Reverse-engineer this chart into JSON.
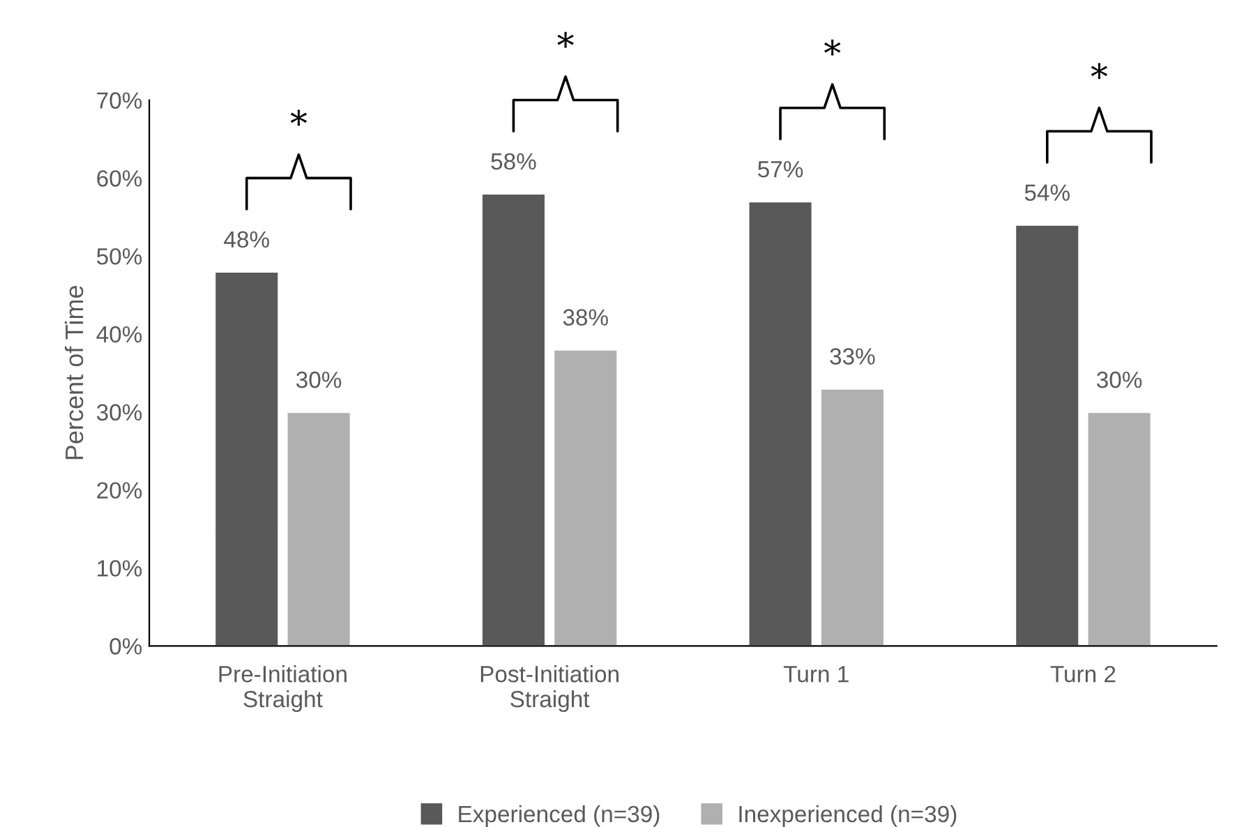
{
  "chart_data": {
    "type": "bar",
    "categories": [
      "Pre-Initiation\nStraight",
      "Post-Initiation\nStraight",
      "Turn 1",
      "Turn 2"
    ],
    "series": [
      {
        "name": "Experienced (n=39)",
        "color": "#595959",
        "values": [
          48,
          58,
          57,
          54
        ],
        "value_labels": [
          "48%",
          "58%",
          "57%",
          "54%"
        ]
      },
      {
        "name": "Inexperienced (n=39)",
        "color": "#b0b0b0",
        "values": [
          30,
          38,
          33,
          30
        ],
        "value_labels": [
          "30%",
          "38%",
          "33%",
          "30%"
        ]
      }
    ],
    "ylabel": "Percent of Time",
    "ylim": [
      0,
      70
    ],
    "yticks": [
      {
        "value": 0,
        "label": "0%"
      },
      {
        "value": 10,
        "label": "10%"
      },
      {
        "value": 20,
        "label": "20%"
      },
      {
        "value": 30,
        "label": "30%"
      },
      {
        "value": 40,
        "label": "40%"
      },
      {
        "value": 50,
        "label": "50%"
      },
      {
        "value": 60,
        "label": "60%"
      },
      {
        "value": 70,
        "label": "70%"
      }
    ],
    "annotations": [
      "*",
      "*",
      "*",
      "*"
    ],
    "grid": false,
    "legend": "bottom"
  }
}
